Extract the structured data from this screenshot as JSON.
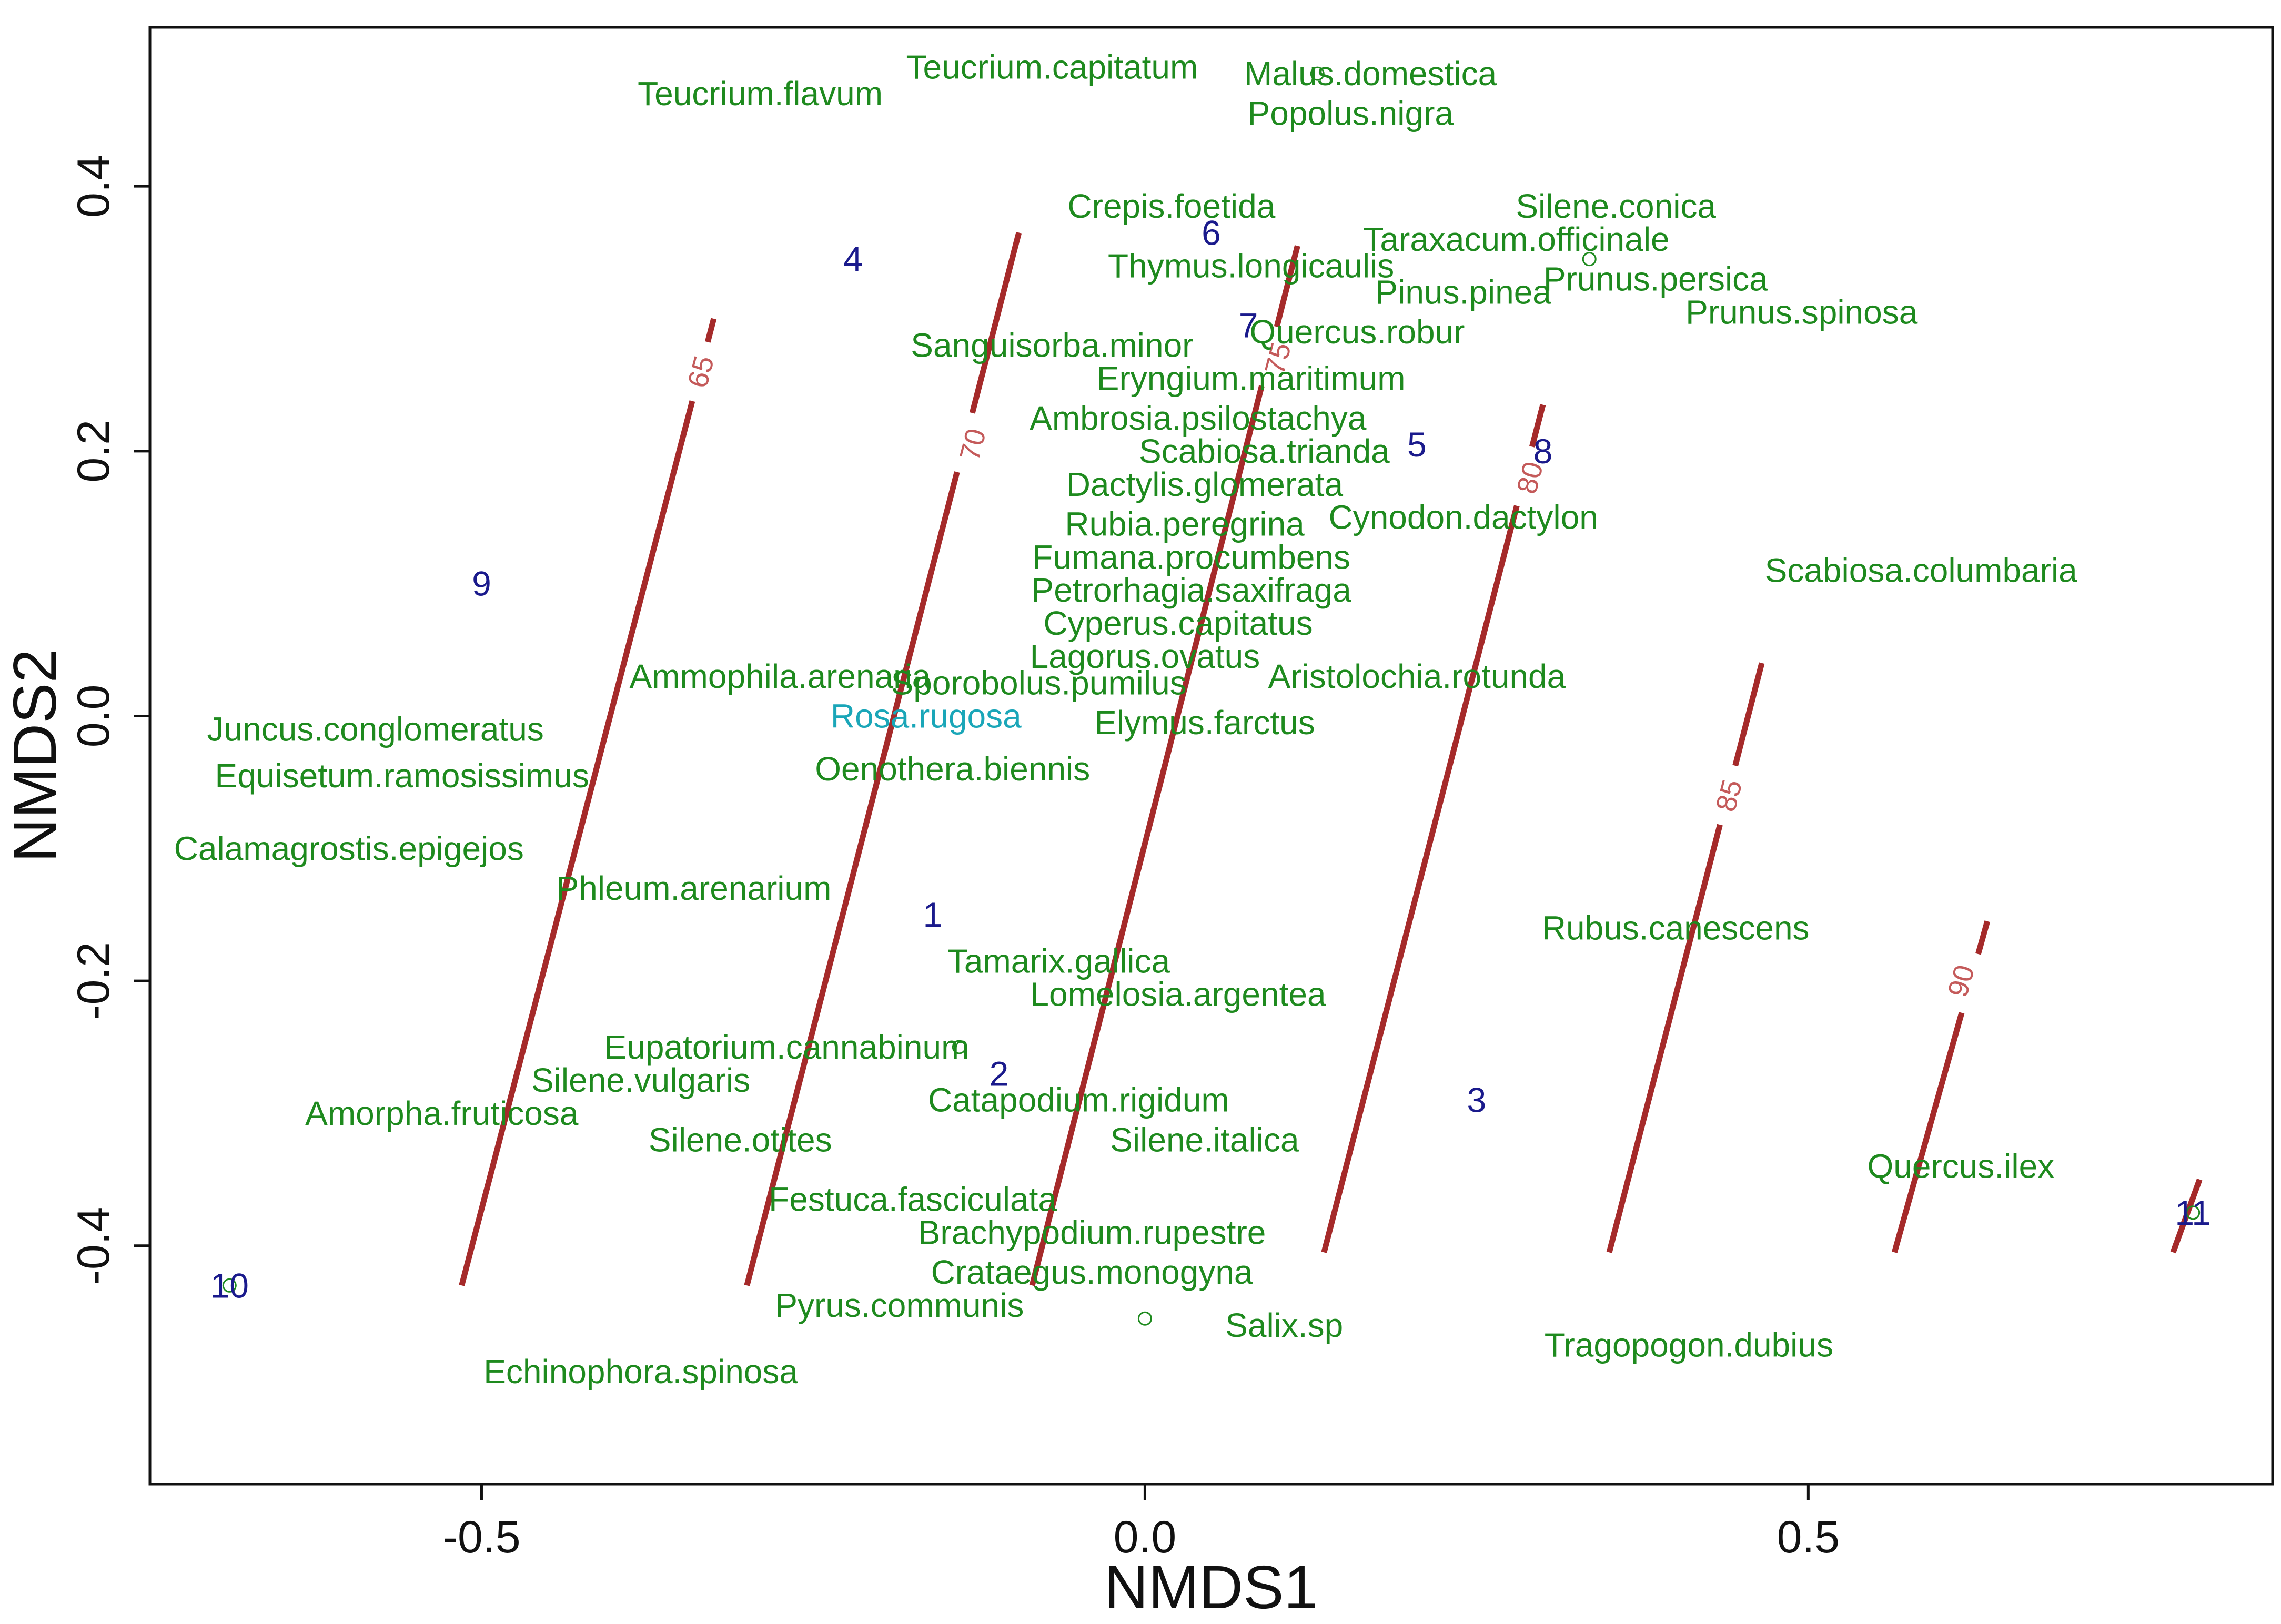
{
  "chart_data": {
    "type": "scatter",
    "title": "",
    "xlabel": "NMDS1",
    "ylabel": "NMDS2",
    "xlim": [
      -0.75,
      0.85
    ],
    "ylim": [
      -0.58,
      0.52
    ],
    "x_ticks": [
      -0.5,
      0.0,
      0.5
    ],
    "x_tick_labels": [
      "-0.5",
      "0.0",
      "0.5"
    ],
    "y_ticks": [
      -0.4,
      -0.2,
      0.0,
      0.2,
      0.4
    ],
    "y_tick_labels": [
      "-0.4",
      "-0.2",
      "0.0",
      "0.2",
      "0.4"
    ],
    "grid": false,
    "colors": {
      "species": "#1e8a1e",
      "highlight_species": "#1aa6b8",
      "sites": "#1a1a8c",
      "contours": "#a52a2a",
      "contour_labels": "#c45a5a"
    },
    "species": [
      {
        "name": "Teucrium.capitatum",
        "x": -0.07,
        "y": 0.49
      },
      {
        "name": "Teucrium.flavum",
        "x": -0.29,
        "y": 0.47
      },
      {
        "name": "Malus.domestica",
        "x": 0.17,
        "y": 0.485
      },
      {
        "name": "Popolus.nigra",
        "x": 0.155,
        "y": 0.455
      },
      {
        "name": "Crepis.foetida",
        "x": 0.02,
        "y": 0.385
      },
      {
        "name": "Silene.conica",
        "x": 0.355,
        "y": 0.385
      },
      {
        "name": "Taraxacum.officinale",
        "x": 0.28,
        "y": 0.36
      },
      {
        "name": "Thymus.longicaulis",
        "x": 0.08,
        "y": 0.34
      },
      {
        "name": "Prunus.persica",
        "x": 0.385,
        "y": 0.33
      },
      {
        "name": "Pinus.pinea",
        "x": 0.24,
        "y": 0.32
      },
      {
        "name": "Prunus.spinosa",
        "x": 0.495,
        "y": 0.305
      },
      {
        "name": "Quercus.robur",
        "x": 0.16,
        "y": 0.29
      },
      {
        "name": "Sanguisorba.minor",
        "x": -0.07,
        "y": 0.28
      },
      {
        "name": "Eryngium.maritimum",
        "x": 0.08,
        "y": 0.255
      },
      {
        "name": "Ambrosia.psilostachya",
        "x": 0.04,
        "y": 0.225
      },
      {
        "name": "Scabiosa.trianda",
        "x": 0.09,
        "y": 0.2
      },
      {
        "name": "Dactylis.glomerata",
        "x": 0.045,
        "y": 0.175
      },
      {
        "name": "Cynodon.dactylon",
        "x": 0.24,
        "y": 0.15
      },
      {
        "name": "Rubia.peregrina",
        "x": 0.03,
        "y": 0.145
      },
      {
        "name": "Fumana.procumbens",
        "x": 0.035,
        "y": 0.12
      },
      {
        "name": "Scabiosa.columbaria",
        "x": 0.585,
        "y": 0.11
      },
      {
        "name": "Petrorhagia.saxifraga",
        "x": 0.035,
        "y": 0.095
      },
      {
        "name": "Cyperus.capitatus",
        "x": 0.025,
        "y": 0.07
      },
      {
        "name": "Lagorus.ovatus",
        "x": 0.0,
        "y": 0.045
      },
      {
        "name": "Aristolochia.rotunda",
        "x": 0.205,
        "y": 0.03
      },
      {
        "name": "Ammophila.arenaria",
        "x": -0.275,
        "y": 0.03
      },
      {
        "name": "Sporobolus.pumilus",
        "x": -0.08,
        "y": 0.025
      },
      {
        "name": "Rosa.rugosa",
        "x": -0.165,
        "y": 0.0,
        "highlight": true
      },
      {
        "name": "Elymus.farctus",
        "x": 0.045,
        "y": -0.005
      },
      {
        "name": "Juncus.conglomeratus",
        "x": -0.58,
        "y": -0.01
      },
      {
        "name": "Oenothera.biennis",
        "x": -0.145,
        "y": -0.04
      },
      {
        "name": "Equisetum.ramosissimus",
        "x": -0.56,
        "y": -0.045
      },
      {
        "name": "Calamagrostis.epigejos",
        "x": -0.6,
        "y": -0.1
      },
      {
        "name": "Phleum.arenarium",
        "x": -0.34,
        "y": -0.13
      },
      {
        "name": "Rubus.canescens",
        "x": 0.4,
        "y": -0.16
      },
      {
        "name": "Tamarix.gallica",
        "x": -0.065,
        "y": -0.185
      },
      {
        "name": "Lomelosia.argentea",
        "x": 0.025,
        "y": -0.21
      },
      {
        "name": "Eupatorium.cannabinum",
        "x": -0.27,
        "y": -0.25
      },
      {
        "name": "Silene.vulgaris",
        "x": -0.38,
        "y": -0.275
      },
      {
        "name": "Catapodium.rigidum",
        "x": -0.05,
        "y": -0.29
      },
      {
        "name": "Amorpha.fruticosa",
        "x": -0.53,
        "y": -0.3
      },
      {
        "name": "Silene.otites",
        "x": -0.305,
        "y": -0.32
      },
      {
        "name": "Silene.italica",
        "x": 0.045,
        "y": -0.32
      },
      {
        "name": "Quercus.ilex",
        "x": 0.615,
        "y": -0.34
      },
      {
        "name": "Festuca.fasciculata",
        "x": -0.175,
        "y": -0.365
      },
      {
        "name": "Brachypodium.rupestre",
        "x": -0.04,
        "y": -0.39
      },
      {
        "name": "Crataegus.monogyna",
        "x": -0.04,
        "y": -0.42
      },
      {
        "name": "Pyrus.communis",
        "x": -0.185,
        "y": -0.445
      },
      {
        "name": "Salix.sp",
        "x": 0.105,
        "y": -0.46
      },
      {
        "name": "Tragopogon.dubius",
        "x": 0.41,
        "y": -0.475
      },
      {
        "name": "Echinophora.spinosa",
        "x": -0.38,
        "y": -0.495
      }
    ],
    "sites": [
      {
        "label": "1",
        "x": -0.16,
        "y": -0.15
      },
      {
        "label": "2",
        "x": -0.11,
        "y": -0.27
      },
      {
        "label": "3",
        "x": 0.25,
        "y": -0.29
      },
      {
        "label": "4",
        "x": -0.22,
        "y": 0.345
      },
      {
        "label": "5",
        "x": 0.205,
        "y": 0.205
      },
      {
        "label": "6",
        "x": 0.05,
        "y": 0.365
      },
      {
        "label": "7",
        "x": 0.078,
        "y": 0.295
      },
      {
        "label": "8",
        "x": 0.3,
        "y": 0.2
      },
      {
        "label": "9",
        "x": -0.5,
        "y": 0.1
      },
      {
        "label": "10",
        "x": -0.69,
        "y": -0.43
      },
      {
        "label": "11",
        "x": 0.79,
        "y": -0.375
      }
    ],
    "contours": [
      {
        "level": "65",
        "x1": -0.515,
        "y1": -0.43,
        "x2": -0.325,
        "y2": 0.3,
        "label_x": -0.335,
        "label_y": 0.26
      },
      {
        "level": "70",
        "x1": -0.3,
        "y1": -0.43,
        "x2": -0.095,
        "y2": 0.365,
        "label_x": -0.13,
        "label_y": 0.205
      },
      {
        "level": "75",
        "x1": -0.085,
        "y1": -0.43,
        "x2": 0.115,
        "y2": 0.355,
        "label_x": 0.1,
        "label_y": 0.27
      },
      {
        "level": "80",
        "x1": 0.135,
        "y1": -0.405,
        "x2": 0.3,
        "y2": 0.235,
        "label_x": 0.29,
        "label_y": 0.18
      },
      {
        "level": "85",
        "x1": 0.35,
        "y1": -0.405,
        "x2": 0.465,
        "y2": 0.04,
        "label_x": 0.44,
        "label_y": -0.06
      },
      {
        "level": "90",
        "x1": 0.565,
        "y1": -0.405,
        "x2": 0.635,
        "y2": -0.155,
        "label_x": 0.615,
        "label_y": -0.2
      },
      {
        "level": "",
        "x1": 0.775,
        "y1": -0.405,
        "x2": 0.795,
        "y2": -0.35,
        "label_x": 0.785,
        "label_y": -0.37
      }
    ],
    "markers": [
      {
        "x": 0.0,
        "y": -0.455
      },
      {
        "x": 0.13,
        "y": 0.485
      },
      {
        "x": 0.335,
        "y": 0.345
      },
      {
        "x": -0.14,
        "y": -0.25
      },
      {
        "x": 0.79,
        "y": -0.375
      },
      {
        "x": -0.69,
        "y": -0.43
      }
    ]
  }
}
